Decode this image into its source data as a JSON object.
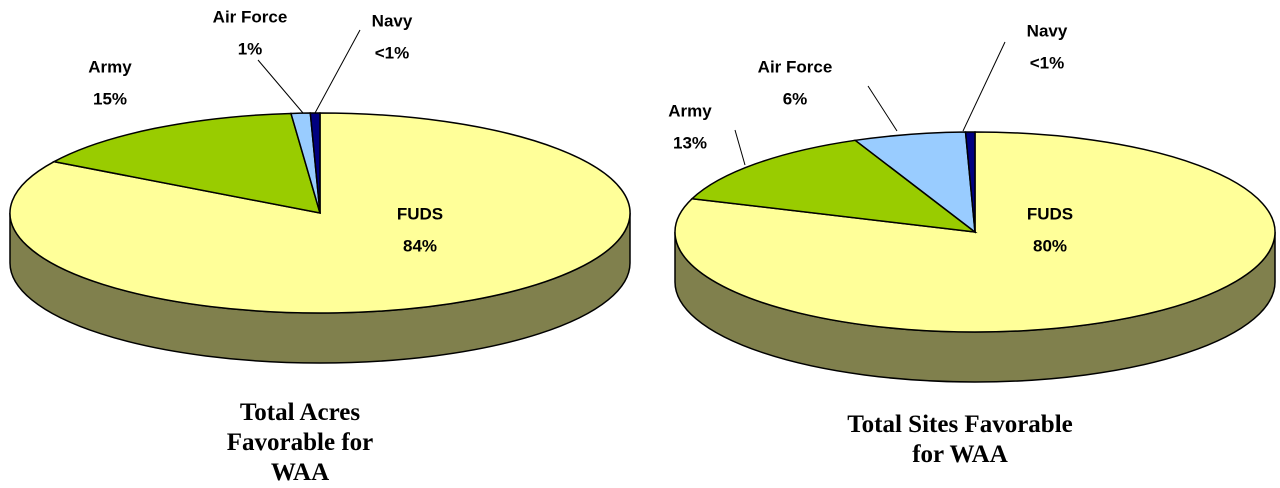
{
  "chart_data": [
    {
      "type": "pie",
      "title": "Total Acres Favorable for WAA",
      "categories": [
        "FUDS",
        "Army",
        "Air Force",
        "Navy"
      ],
      "values": [
        84,
        15,
        1,
        0.5
      ],
      "value_labels": [
        "84%",
        "15%",
        "1%",
        "<1%"
      ],
      "colors": [
        "#ffff99",
        "#99cc00",
        "#99ccff",
        "#000080"
      ]
    },
    {
      "type": "pie",
      "title": "Total Sites Favorable for WAA",
      "categories": [
        "FUDS",
        "Army",
        "Air Force",
        "Navy"
      ],
      "values": [
        80,
        13,
        6,
        0.5
      ],
      "value_labels": [
        "80%",
        "13%",
        "6%",
        "<1%"
      ],
      "colors": [
        "#ffff99",
        "#99cc00",
        "#99ccff",
        "#000080"
      ]
    }
  ]
}
